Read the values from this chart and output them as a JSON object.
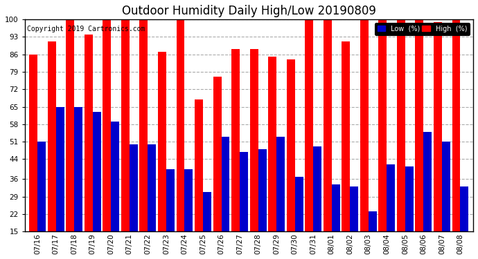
{
  "title": "Outdoor Humidity Daily High/Low 20190809",
  "copyright": "Copyright 2019 Cartronics.com",
  "dates": [
    "07/16",
    "07/17",
    "07/18",
    "07/19",
    "07/20",
    "07/21",
    "07/22",
    "07/23",
    "07/24",
    "07/25",
    "07/26",
    "07/27",
    "07/28",
    "07/29",
    "07/30",
    "07/31",
    "08/01",
    "08/02",
    "08/03",
    "08/04",
    "08/05",
    "08/06",
    "08/07",
    "08/08"
  ],
  "high": [
    86,
    91,
    100,
    94,
    100,
    100,
    100,
    87,
    100,
    68,
    77,
    88,
    88,
    85,
    84,
    100,
    100,
    91,
    100,
    100,
    100,
    100,
    99,
    100
  ],
  "low": [
    51,
    65,
    65,
    63,
    59,
    50,
    50,
    40,
    40,
    31,
    53,
    47,
    48,
    53,
    37,
    49,
    34,
    33,
    23,
    42,
    41,
    55,
    51,
    33
  ],
  "bar_width": 0.45,
  "high_color": "#FF0000",
  "low_color": "#0000CC",
  "bg_color": "#FFFFFF",
  "grid_color": "#AAAAAA",
  "ylim_min": 15,
  "ylim_max": 100,
  "yticks": [
    15,
    22,
    29,
    36,
    44,
    51,
    58,
    65,
    72,
    79,
    86,
    93,
    100
  ],
  "title_fontsize": 12,
  "copyright_fontsize": 7,
  "tick_fontsize": 7.5
}
